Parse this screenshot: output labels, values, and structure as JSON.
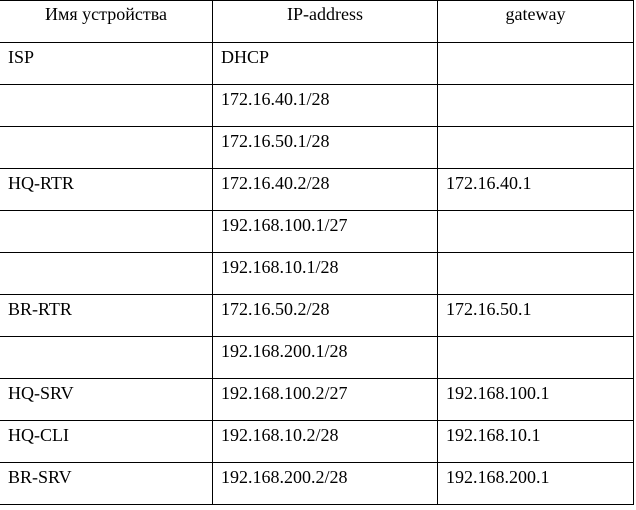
{
  "headers": [
    "Имя устройства",
    "IP-address",
    "gateway"
  ],
  "rows": [
    [
      "ISP",
      "DHCP",
      ""
    ],
    [
      "",
      "172.16.40.1/28",
      ""
    ],
    [
      "",
      "172.16.50.1/28",
      ""
    ],
    [
      "HQ-RTR",
      "172.16.40.2/28",
      "172.16.40.1"
    ],
    [
      "",
      "192.168.100.1/27",
      ""
    ],
    [
      "",
      "192.168.10.1/28",
      ""
    ],
    [
      "BR-RTR",
      "172.16.50.2/28",
      "172.16.50.1"
    ],
    [
      "",
      "192.168.200.1/28",
      ""
    ],
    [
      "HQ-SRV",
      "192.168.100.2/27",
      "192.168.100.1"
    ],
    [
      "HQ-CLI",
      "192.168.10.2/28",
      "192.168.10.1"
    ],
    [
      "BR-SRV",
      "192.168.200.2/28",
      "192.168.200.1"
    ]
  ]
}
